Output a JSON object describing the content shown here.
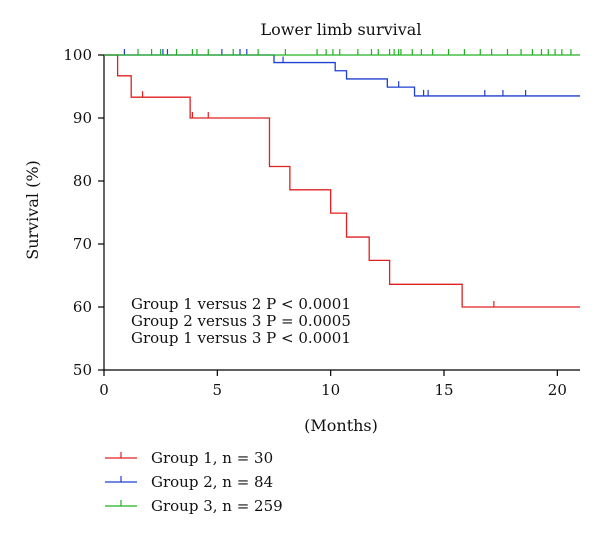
{
  "chart_data": {
    "type": "line",
    "title": "Lower limb survival",
    "xlabel": "(Months)",
    "ylabel": "Survival (%)",
    "xlim": [
      0,
      21
    ],
    "ylim": [
      50,
      100
    ],
    "xticks": [
      0,
      5,
      10,
      15,
      20
    ],
    "yticks": [
      50,
      60,
      70,
      80,
      90,
      100
    ],
    "grid": false,
    "legend_position": "bottom-left",
    "annotations": [
      "Group 1 versus 2 P < 0.0001",
      "Group 2 versus 3 P = 0.0005",
      "Group 1 versus 3 P < 0.0001"
    ],
    "series": [
      {
        "name": "Group 1, n = 30",
        "color": "#e02020",
        "steps": [
          [
            0,
            100
          ],
          [
            0.6,
            96.7
          ],
          [
            1.2,
            93.3
          ],
          [
            3.8,
            90.0
          ],
          [
            7.3,
            82.3
          ],
          [
            8.2,
            78.6
          ],
          [
            10.0,
            74.9
          ],
          [
            10.7,
            71.1
          ],
          [
            11.7,
            67.4
          ],
          [
            12.6,
            63.6
          ],
          [
            15.8,
            60.0
          ],
          [
            21,
            60.0
          ]
        ],
        "censored": [
          [
            1.7,
            93.3
          ],
          [
            3.9,
            90.0
          ],
          [
            4.6,
            90.0
          ],
          [
            17.2,
            60.0
          ]
        ]
      },
      {
        "name": "Group 2, n = 84",
        "color": "#1f3fd0",
        "steps": [
          [
            0,
            100
          ],
          [
            7.5,
            98.8
          ],
          [
            9.9,
            98.8
          ],
          [
            10.2,
            97.5
          ],
          [
            10.7,
            96.2
          ],
          [
            12.5,
            94.9
          ],
          [
            13.7,
            93.5
          ],
          [
            21,
            93.5
          ]
        ],
        "censored": [
          [
            0.9,
            100
          ],
          [
            2.6,
            100
          ],
          [
            2.8,
            100
          ],
          [
            5.2,
            100
          ],
          [
            6.0,
            100
          ],
          [
            6.3,
            100
          ],
          [
            7.9,
            98.8
          ],
          [
            13.0,
            94.9
          ],
          [
            14.1,
            93.5
          ],
          [
            14.3,
            93.5
          ],
          [
            16.8,
            93.5
          ],
          [
            17.6,
            93.5
          ],
          [
            18.6,
            93.5
          ]
        ],
        "initial_censor_segment": true
      },
      {
        "name": "Group 3, n = 259",
        "color": "#20b020",
        "steps": [
          [
            0,
            100
          ],
          [
            21,
            100
          ]
        ],
        "censored": [
          [
            1.5,
            100
          ],
          [
            2.1,
            100
          ],
          [
            2.5,
            100
          ],
          [
            3.2,
            100
          ],
          [
            3.9,
            100
          ],
          [
            4.1,
            100
          ],
          [
            4.6,
            100
          ],
          [
            5.7,
            100
          ],
          [
            6.8,
            100
          ],
          [
            8.0,
            100
          ],
          [
            9.4,
            100
          ],
          [
            9.8,
            100
          ],
          [
            10.1,
            100
          ],
          [
            10.4,
            100
          ],
          [
            11.2,
            100
          ],
          [
            11.8,
            100
          ],
          [
            12.1,
            100
          ],
          [
            12.6,
            100
          ],
          [
            12.8,
            100
          ],
          [
            13.0,
            100
          ],
          [
            13.1,
            100
          ],
          [
            13.6,
            100
          ],
          [
            14.0,
            100
          ],
          [
            14.5,
            100
          ],
          [
            15.2,
            100
          ],
          [
            15.9,
            100
          ],
          [
            16.6,
            100
          ],
          [
            17.1,
            100
          ],
          [
            17.8,
            100
          ],
          [
            18.4,
            100
          ],
          [
            18.9,
            100
          ],
          [
            19.3,
            100
          ],
          [
            19.6,
            100
          ],
          [
            19.9,
            100
          ],
          [
            20.2,
            100
          ],
          [
            20.6,
            100
          ]
        ]
      }
    ]
  }
}
